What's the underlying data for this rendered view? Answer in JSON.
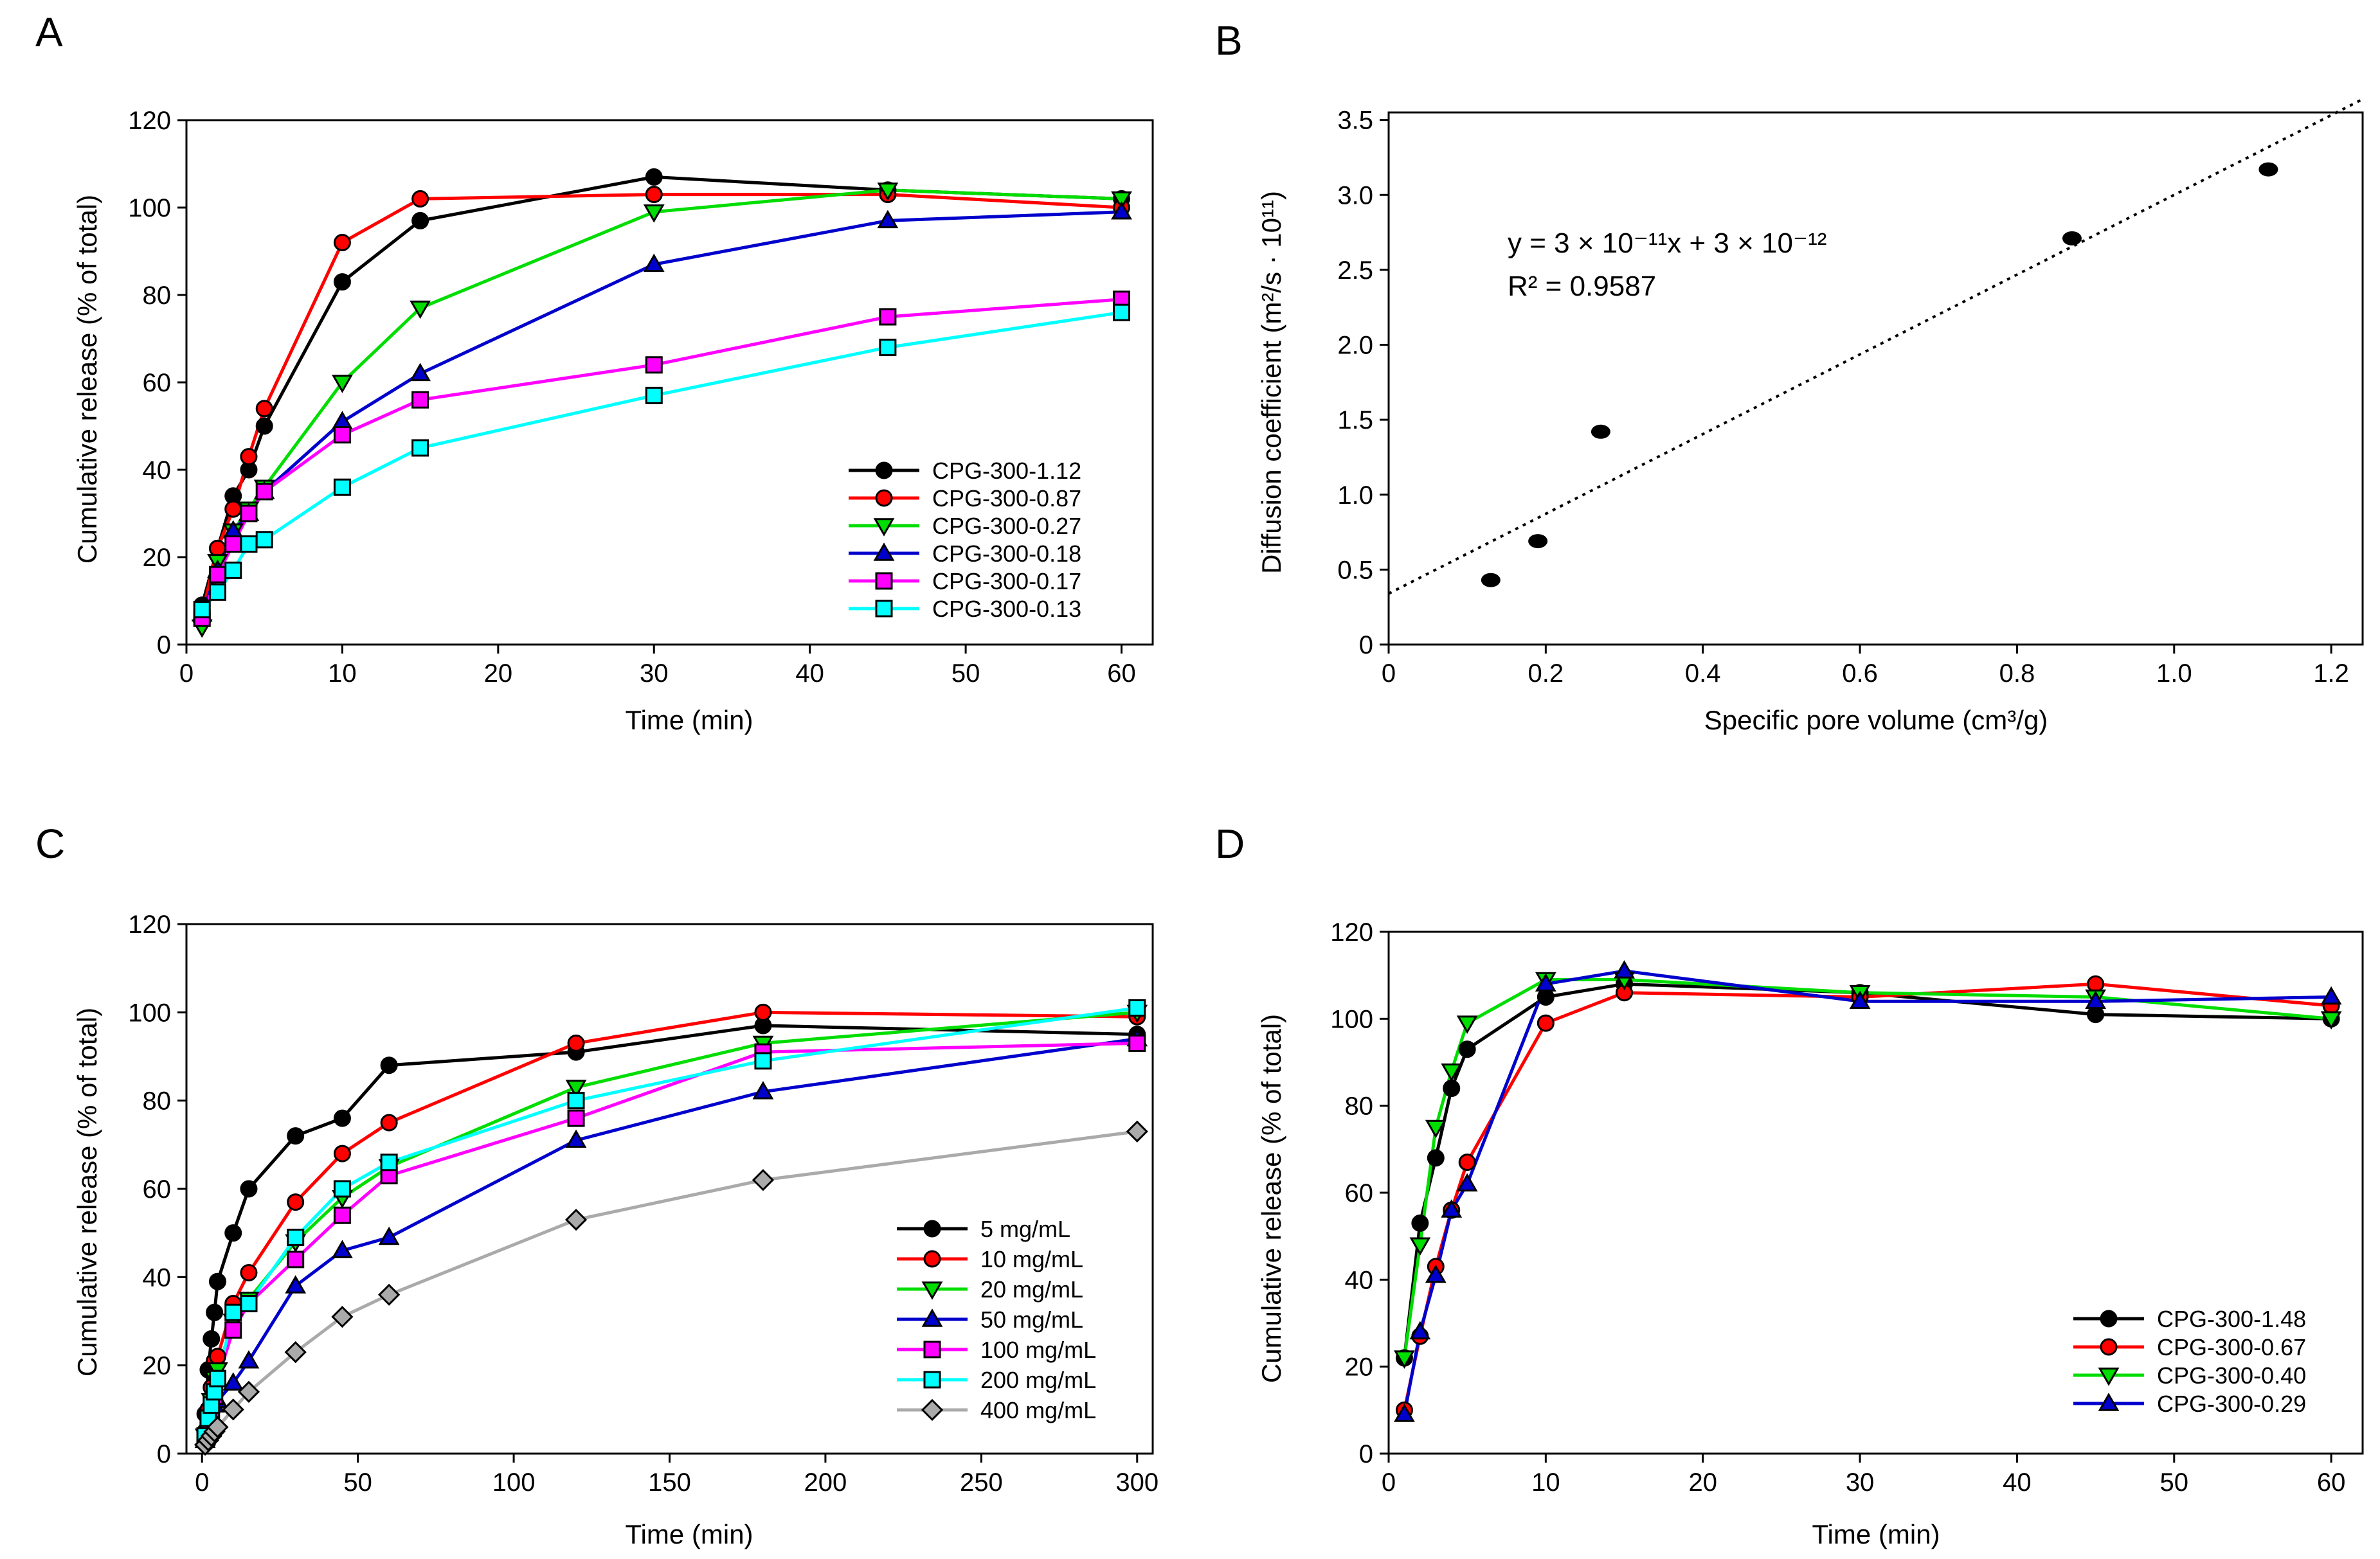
{
  "figure": {
    "panels": [
      "A",
      "B",
      "C",
      "D"
    ]
  },
  "chart_data": [
    {
      "id": "A",
      "panel_label": "A",
      "type": "line",
      "xlabel": "Time (min)",
      "ylabel": "Cumulative release (% of total)",
      "xlim": [
        0,
        62
      ],
      "ylim": [
        0,
        120
      ],
      "xticks": [
        0,
        10,
        20,
        30,
        40,
        50,
        60
      ],
      "yticks": [
        0,
        20,
        40,
        60,
        80,
        100,
        120
      ],
      "grid": false,
      "legend_position": "lower-right",
      "x": [
        1,
        2,
        3,
        4,
        5,
        10,
        15,
        30,
        45,
        60
      ],
      "series": [
        {
          "name": "CPG-300-1.12",
          "color": "#000000",
          "marker": "circle",
          "values": [
            9,
            22,
            34,
            40,
            50,
            83,
            97,
            107,
            104,
            102
          ]
        },
        {
          "name": "CPG-300-0.87",
          "color": "#ff0000",
          "marker": "circle",
          "values": [
            7,
            22,
            31,
            43,
            54,
            92,
            102,
            103,
            103,
            100
          ]
        },
        {
          "name": "CPG-300-0.27",
          "color": "#00dd00",
          "marker": "triangle-down",
          "values": [
            4,
            19,
            26,
            31,
            36,
            60,
            77,
            99,
            104,
            102
          ]
        },
        {
          "name": "CPG-300-0.18",
          "color": "#0000cc",
          "marker": "triangle-up",
          "values": [
            7,
            17,
            26,
            30,
            35,
            51,
            62,
            87,
            97,
            99
          ]
        },
        {
          "name": "CPG-300-0.17",
          "color": "#ff00ff",
          "marker": "square",
          "values": [
            6,
            16,
            23,
            30,
            35,
            48,
            56,
            64,
            75,
            79
          ]
        },
        {
          "name": "CPG-300-0.13",
          "color": "#00ffff",
          "marker": "square",
          "values": [
            8,
            12,
            17,
            23,
            24,
            36,
            45,
            57,
            68,
            76
          ]
        }
      ]
    },
    {
      "id": "B",
      "panel_label": "B",
      "type": "scatter",
      "xlabel": "Specific pore volume (cm³/g)",
      "ylabel": "Diffusion coefficient (m²/s · 10¹¹)",
      "xlim": [
        0,
        1.24
      ],
      "ylim": [
        0,
        3.55
      ],
      "xticks": [
        0,
        0.2,
        0.4,
        0.6,
        0.8,
        1.0,
        1.2
      ],
      "xtick_labels": [
        "0",
        "0.2",
        "0.4",
        "0.6",
        "0.8",
        "1.0",
        "1.2"
      ],
      "yticks": [
        0,
        0.5,
        1.0,
        1.5,
        2.0,
        2.5,
        3.0,
        3.5
      ],
      "ytick_labels": [
        "0",
        "0.5",
        "1.0",
        "1.5",
        "2.0",
        "2.5",
        "3.0",
        "3.5"
      ],
      "grid": false,
      "points": [
        {
          "x": 0.13,
          "y": 0.43
        },
        {
          "x": 0.19,
          "y": 0.69
        },
        {
          "x": 0.27,
          "y": 1.42
        },
        {
          "x": 0.87,
          "y": 2.71
        },
        {
          "x": 1.12,
          "y": 3.17
        }
      ],
      "trendline": {
        "style": "dotted",
        "slope": 2.66,
        "intercept": 0.34,
        "x_from": 0,
        "x_to": 1.24
      },
      "equation": "y = 3 × 10⁻¹¹x + 3 × 10⁻¹²",
      "r_squared": "R² = 0.9587"
    },
    {
      "id": "C",
      "panel_label": "C",
      "type": "line",
      "xlabel": "Time (min)",
      "ylabel": "Cumulative release (% of total)",
      "xlim": [
        -5,
        305
      ],
      "ylim": [
        0,
        120
      ],
      "xticks": [
        0,
        50,
        100,
        150,
        200,
        250,
        300
      ],
      "yticks": [
        0,
        20,
        40,
        60,
        80,
        100,
        120
      ],
      "grid": false,
      "legend_position": "lower-right",
      "x": [
        1,
        2,
        3,
        4,
        5,
        10,
        15,
        30,
        45,
        60,
        120,
        180,
        300
      ],
      "series": [
        {
          "name": "5 mg/mL",
          "color": "#000000",
          "marker": "circle",
          "values": [
            9,
            19,
            26,
            32,
            39,
            50,
            60,
            72,
            76,
            88,
            91,
            97,
            95
          ]
        },
        {
          "name": "10 mg/mL",
          "color": "#ff0000",
          "marker": "circle",
          "values": [
            5,
            10,
            15,
            21,
            22,
            34,
            41,
            57,
            68,
            75,
            93,
            100,
            99
          ]
        },
        {
          "name": "20 mg/mL",
          "color": "#00dd00",
          "marker": "triangle-down",
          "values": [
            4,
            8,
            12,
            17,
            19,
            30,
            35,
            48,
            58,
            65,
            83,
            93,
            100
          ]
        },
        {
          "name": "50 mg/mL",
          "color": "#0000cc",
          "marker": "triangle-up",
          "values": [
            3,
            5,
            8,
            11,
            12,
            16,
            21,
            38,
            46,
            49,
            71,
            82,
            94
          ]
        },
        {
          "name": "100 mg/mL",
          "color": "#ff00ff",
          "marker": "square",
          "values": [
            4,
            7,
            10,
            13,
            17,
            28,
            34,
            44,
            54,
            63,
            76,
            91,
            93
          ]
        },
        {
          "name": "200 mg/mL",
          "color": "#00ffff",
          "marker": "square",
          "values": [
            4,
            8,
            11,
            14,
            17,
            32,
            34,
            49,
            60,
            66,
            80,
            89,
            101
          ]
        },
        {
          "name": "400 mg/mL",
          "color": "#aaaaaa",
          "marker": "diamond",
          "values": [
            2,
            3,
            4,
            5,
            6,
            10,
            14,
            23,
            31,
            36,
            53,
            62,
            73
          ]
        }
      ]
    },
    {
      "id": "D",
      "panel_label": "D",
      "type": "line",
      "xlabel": "Time (min)",
      "ylabel": "Cumulative release (% of total)",
      "xlim": [
        0,
        62
      ],
      "ylim": [
        0,
        120
      ],
      "xticks": [
        0,
        10,
        20,
        30,
        40,
        50,
        60
      ],
      "yticks": [
        0,
        20,
        40,
        60,
        80,
        100,
        120
      ],
      "grid": false,
      "legend_position": "lower-right",
      "x": [
        1,
        2,
        3,
        4,
        5,
        10,
        15,
        30,
        45,
        60
      ],
      "series": [
        {
          "name": "CPG-300-1.48",
          "color": "#000000",
          "marker": "circle",
          "values": [
            22,
            53,
            68,
            84,
            93,
            105,
            108,
            106,
            101,
            100
          ]
        },
        {
          "name": "CPG-300-0.67",
          "color": "#ff0000",
          "marker": "circle",
          "values": [
            10,
            27,
            43,
            56,
            67,
            99,
            106,
            105,
            108,
            103
          ]
        },
        {
          "name": "CPG-300-0.40",
          "color": "#00dd00",
          "marker": "triangle-down",
          "values": [
            22,
            48,
            75,
            88,
            99,
            109,
            109,
            106,
            105,
            100
          ]
        },
        {
          "name": "CPG-300-0.29",
          "color": "#0000cc",
          "marker": "triangle-up",
          "values": [
            9,
            28,
            41,
            56,
            62,
            108,
            111,
            104,
            104,
            105
          ]
        }
      ]
    }
  ]
}
